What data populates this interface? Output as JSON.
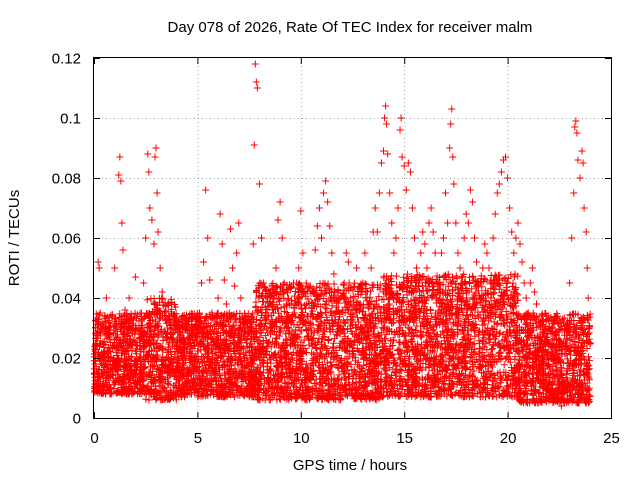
{
  "chart_data": {
    "type": "scatter",
    "title": "Day 078 of 2026, Rate Of TEC Index for receiver malm",
    "xlabel": "GPS time / hours",
    "ylabel": "ROTI / TECUs",
    "xlim": [
      0,
      25
    ],
    "ylim": [
      0,
      0.12
    ],
    "xticks": [
      0,
      5,
      10,
      15,
      20,
      25
    ],
    "xtick_labels": [
      "0",
      "5",
      "10",
      "15",
      "20",
      "25"
    ],
    "yticks": [
      0,
      0.02,
      0.04,
      0.06,
      0.08,
      0.1,
      0.12
    ],
    "ytick_labels": [
      "0",
      "0.02",
      "0.04",
      "0.06",
      "0.08",
      "0.1",
      "0.12"
    ],
    "grid": true,
    "marker": "plus",
    "series_color": "#ff0000",
    "series": [
      {
        "name": "ROTI",
        "points": [
          [
            0.05,
            0.018
          ],
          [
            0.1,
            0.024
          ],
          [
            0.15,
            0.012
          ],
          [
            0.2,
            0.052
          ],
          [
            0.25,
            0.05
          ],
          [
            0.3,
            0.035
          ],
          [
            0.4,
            0.02
          ],
          [
            0.5,
            0.015
          ],
          [
            0.6,
            0.04
          ],
          [
            0.7,
            0.028
          ],
          [
            0.8,
            0.022
          ],
          [
            0.9,
            0.016
          ],
          [
            1.0,
            0.05
          ],
          [
            1.1,
            0.03
          ],
          [
            1.2,
            0.081
          ],
          [
            1.25,
            0.087
          ],
          [
            1.3,
            0.079
          ],
          [
            1.35,
            0.065
          ],
          [
            1.4,
            0.056
          ],
          [
            1.5,
            0.036
          ],
          [
            1.6,
            0.024
          ],
          [
            1.7,
            0.04
          ],
          [
            1.8,
            0.02
          ],
          [
            1.9,
            0.03
          ],
          [
            2.0,
            0.047
          ],
          [
            2.1,
            0.018
          ],
          [
            2.2,
            0.026
          ],
          [
            2.3,
            0.035
          ],
          [
            2.4,
            0.045
          ],
          [
            2.5,
            0.06
          ],
          [
            2.6,
            0.088
          ],
          [
            2.65,
            0.082
          ],
          [
            2.7,
            0.07
          ],
          [
            2.8,
            0.066
          ],
          [
            2.9,
            0.058
          ],
          [
            2.95,
            0.087
          ],
          [
            3.0,
            0.09
          ],
          [
            3.05,
            0.075
          ],
          [
            3.1,
            0.062
          ],
          [
            3.2,
            0.05
          ],
          [
            3.3,
            0.042
          ],
          [
            3.4,
            0.034
          ],
          [
            3.5,
            0.028
          ],
          [
            3.6,
            0.022
          ],
          [
            3.7,
            0.018
          ],
          [
            3.8,
            0.026
          ],
          [
            3.9,
            0.032
          ],
          [
            4.0,
            0.024
          ],
          [
            4.1,
            0.016
          ],
          [
            4.2,
            0.022
          ],
          [
            4.3,
            0.03
          ],
          [
            4.4,
            0.02
          ],
          [
            4.5,
            0.015
          ],
          [
            4.6,
            0.025
          ],
          [
            4.7,
            0.03
          ],
          [
            4.8,
            0.018
          ],
          [
            4.9,
            0.012
          ],
          [
            5.0,
            0.028
          ],
          [
            5.1,
            0.035
          ],
          [
            5.2,
            0.045
          ],
          [
            5.3,
            0.052
          ],
          [
            5.4,
            0.076
          ],
          [
            5.5,
            0.06
          ],
          [
            5.6,
            0.046
          ],
          [
            5.7,
            0.035
          ],
          [
            5.8,
            0.028
          ],
          [
            5.9,
            0.022
          ],
          [
            6.0,
            0.04
          ],
          [
            6.1,
            0.068
          ],
          [
            6.2,
            0.058
          ],
          [
            6.3,
            0.046
          ],
          [
            6.4,
            0.038
          ],
          [
            6.5,
            0.032
          ],
          [
            6.6,
            0.063
          ],
          [
            6.7,
            0.05
          ],
          [
            6.8,
            0.044
          ],
          [
            6.9,
            0.055
          ],
          [
            7.0,
            0.065
          ],
          [
            7.1,
            0.04
          ],
          [
            7.2,
            0.03
          ],
          [
            7.3,
            0.026
          ],
          [
            7.4,
            0.02
          ],
          [
            7.5,
            0.018
          ],
          [
            7.6,
            0.034
          ],
          [
            7.7,
            0.058
          ],
          [
            7.75,
            0.091
          ],
          [
            7.8,
            0.118
          ],
          [
            7.85,
            0.112
          ],
          [
            7.9,
            0.11
          ],
          [
            8.0,
            0.078
          ],
          [
            8.1,
            0.06
          ],
          [
            8.2,
            0.045
          ],
          [
            8.3,
            0.035
          ],
          [
            8.4,
            0.025
          ],
          [
            8.5,
            0.02
          ],
          [
            8.6,
            0.03
          ],
          [
            8.7,
            0.04
          ],
          [
            8.8,
            0.05
          ],
          [
            8.9,
            0.066
          ],
          [
            9.0,
            0.072
          ],
          [
            9.1,
            0.06
          ],
          [
            9.2,
            0.045
          ],
          [
            9.3,
            0.038
          ],
          [
            9.4,
            0.03
          ],
          [
            9.5,
            0.024
          ],
          [
            9.6,
            0.02
          ],
          [
            9.7,
            0.035
          ],
          [
            9.8,
            0.045
          ],
          [
            9.9,
            0.05
          ],
          [
            10.0,
            0.069
          ],
          [
            10.1,
            0.055
          ],
          [
            10.2,
            0.042
          ],
          [
            10.3,
            0.034
          ],
          [
            10.4,
            0.026
          ],
          [
            10.5,
            0.03
          ],
          [
            10.6,
            0.042
          ],
          [
            10.7,
            0.056
          ],
          [
            10.8,
            0.064
          ],
          [
            10.9,
            0.07
          ],
          [
            11.0,
            0.06
          ],
          [
            11.1,
            0.075
          ],
          [
            11.2,
            0.079
          ],
          [
            11.3,
            0.072
          ],
          [
            11.4,
            0.064
          ],
          [
            11.5,
            0.055
          ],
          [
            11.6,
            0.048
          ],
          [
            11.7,
            0.04
          ],
          [
            11.8,
            0.032
          ],
          [
            11.9,
            0.028
          ],
          [
            12.0,
            0.036
          ],
          [
            12.1,
            0.045
          ],
          [
            12.2,
            0.055
          ],
          [
            12.3,
            0.052
          ],
          [
            12.4,
            0.04
          ],
          [
            12.5,
            0.032
          ],
          [
            12.6,
            0.045
          ],
          [
            12.7,
            0.05
          ],
          [
            12.8,
            0.038
          ],
          [
            12.9,
            0.03
          ],
          [
            13.0,
            0.045
          ],
          [
            13.1,
            0.055
          ],
          [
            13.2,
            0.04
          ],
          [
            13.3,
            0.032
          ],
          [
            13.4,
            0.05
          ],
          [
            13.5,
            0.062
          ],
          [
            13.6,
            0.07
          ],
          [
            13.7,
            0.062
          ],
          [
            13.8,
            0.075
          ],
          [
            13.9,
            0.085
          ],
          [
            14.0,
            0.089
          ],
          [
            14.05,
            0.1
          ],
          [
            14.1,
            0.104
          ],
          [
            14.15,
            0.098
          ],
          [
            14.2,
            0.088
          ],
          [
            14.3,
            0.075
          ],
          [
            14.4,
            0.065
          ],
          [
            14.5,
            0.055
          ],
          [
            14.6,
            0.06
          ],
          [
            14.7,
            0.07
          ],
          [
            14.8,
            0.096
          ],
          [
            14.85,
            0.1
          ],
          [
            14.9,
            0.087
          ],
          [
            15.0,
            0.084
          ],
          [
            15.1,
            0.076
          ],
          [
            15.2,
            0.085
          ],
          [
            15.3,
            0.082
          ],
          [
            15.4,
            0.07
          ],
          [
            15.5,
            0.06
          ],
          [
            15.6,
            0.05
          ],
          [
            15.7,
            0.045
          ],
          [
            15.8,
            0.055
          ],
          [
            15.9,
            0.062
          ],
          [
            16.0,
            0.058
          ],
          [
            16.1,
            0.05
          ],
          [
            16.2,
            0.065
          ],
          [
            16.3,
            0.07
          ],
          [
            16.4,
            0.062
          ],
          [
            16.5,
            0.055
          ],
          [
            16.6,
            0.045
          ],
          [
            16.7,
            0.04
          ],
          [
            16.8,
            0.055
          ],
          [
            16.9,
            0.06
          ],
          [
            17.0,
            0.075
          ],
          [
            17.1,
            0.065
          ],
          [
            17.2,
            0.09
          ],
          [
            17.25,
            0.098
          ],
          [
            17.3,
            0.103
          ],
          [
            17.35,
            0.087
          ],
          [
            17.4,
            0.078
          ],
          [
            17.5,
            0.065
          ],
          [
            17.6,
            0.055
          ],
          [
            17.7,
            0.05
          ],
          [
            17.8,
            0.045
          ],
          [
            17.9,
            0.06
          ],
          [
            18.0,
            0.068
          ],
          [
            18.1,
            0.065
          ],
          [
            18.2,
            0.076
          ],
          [
            18.3,
            0.072
          ],
          [
            18.4,
            0.06
          ],
          [
            18.5,
            0.052
          ],
          [
            18.6,
            0.045
          ],
          [
            18.7,
            0.04
          ],
          [
            18.8,
            0.05
          ],
          [
            18.9,
            0.058
          ],
          [
            19.0,
            0.055
          ],
          [
            19.1,
            0.05
          ],
          [
            19.2,
            0.045
          ],
          [
            19.3,
            0.06
          ],
          [
            19.4,
            0.068
          ],
          [
            19.5,
            0.075
          ],
          [
            19.6,
            0.078
          ],
          [
            19.7,
            0.082
          ],
          [
            19.8,
            0.086
          ],
          [
            19.9,
            0.087
          ],
          [
            20.0,
            0.08
          ],
          [
            20.1,
            0.07
          ],
          [
            20.2,
            0.062
          ],
          [
            20.3,
            0.055
          ],
          [
            20.4,
            0.06
          ],
          [
            20.5,
            0.065
          ],
          [
            20.6,
            0.058
          ],
          [
            20.7,
            0.052
          ],
          [
            20.8,
            0.045
          ],
          [
            20.9,
            0.04
          ],
          [
            21.0,
            0.035
          ],
          [
            21.1,
            0.045
          ],
          [
            21.2,
            0.05
          ],
          [
            21.3,
            0.042
          ],
          [
            21.4,
            0.038
          ],
          [
            21.5,
            0.032
          ],
          [
            21.6,
            0.028
          ],
          [
            21.7,
            0.034
          ],
          [
            21.8,
            0.03
          ],
          [
            21.9,
            0.025
          ],
          [
            22.0,
            0.022
          ],
          [
            22.1,
            0.028
          ],
          [
            22.2,
            0.024
          ],
          [
            22.3,
            0.02
          ],
          [
            22.4,
            0.016
          ],
          [
            22.5,
            0.01
          ],
          [
            22.6,
            0.004
          ],
          [
            22.7,
            0.012
          ],
          [
            22.8,
            0.025
          ],
          [
            22.9,
            0.03
          ],
          [
            23.0,
            0.045
          ],
          [
            23.1,
            0.06
          ],
          [
            23.2,
            0.075
          ],
          [
            23.25,
            0.097
          ],
          [
            23.3,
            0.099
          ],
          [
            23.35,
            0.095
          ],
          [
            23.4,
            0.086
          ],
          [
            23.5,
            0.08
          ],
          [
            23.6,
            0.089
          ],
          [
            23.65,
            0.085
          ],
          [
            23.7,
            0.07
          ],
          [
            23.8,
            0.062
          ],
          [
            23.85,
            0.05
          ],
          [
            23.9,
            0.04
          ],
          [
            23.95,
            0.03
          ],
          [
            24.0,
            0.025
          ]
        ],
        "dense_band": {
          "segments": [
            {
              "x": [
                0,
                2.5
              ],
              "typical": [
                0.008,
                0.035
              ]
            },
            {
              "x": [
                2.5,
                4
              ],
              "typical": [
                0.006,
                0.04
              ]
            },
            {
              "x": [
                4,
                7.8
              ],
              "typical": [
                0.007,
                0.035
              ]
            },
            {
              "x": [
                7.8,
                14
              ],
              "typical": [
                0.006,
                0.045
              ]
            },
            {
              "x": [
                14,
                20.5
              ],
              "typical": [
                0.007,
                0.048
              ]
            },
            {
              "x": [
                20.5,
                24
              ],
              "typical": [
                0.005,
                0.035
              ]
            }
          ]
        }
      }
    ]
  }
}
